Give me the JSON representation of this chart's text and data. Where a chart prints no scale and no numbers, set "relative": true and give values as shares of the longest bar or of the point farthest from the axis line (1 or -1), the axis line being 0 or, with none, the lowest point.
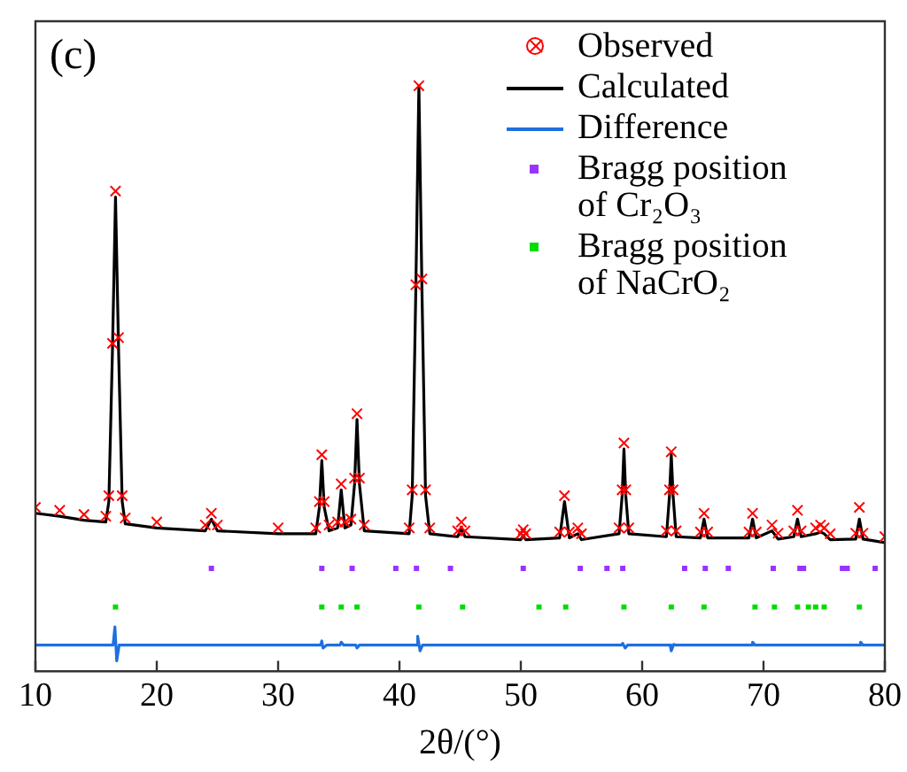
{
  "chart_data": {
    "type": "line",
    "relative": true,
    "xlabel": "2θ/(°)",
    "xlim": [
      10,
      80
    ],
    "xticks": [
      10,
      20,
      30,
      40,
      50,
      60,
      70,
      80
    ],
    "tick_labels": "x",
    "grid": false,
    "legend": "top right",
    "annotations": [
      "(c)"
    ],
    "series": [
      {
        "name": "Observed",
        "type": "scatter",
        "marker": "cross",
        "color": "#ff0000",
        "x": [
          10,
          12,
          14,
          15.8,
          16.05,
          16.35,
          16.6,
          16.85,
          17.15,
          17.4,
          20,
          24.0,
          24.5,
          25.0,
          30,
          33.1,
          33.4,
          33.6,
          33.8,
          34.2,
          34.9,
          35.2,
          35.5,
          36.0,
          36.3,
          36.5,
          36.7,
          37.1,
          40.8,
          41.05,
          41.35,
          41.6,
          41.85,
          42.15,
          42.5,
          44.8,
          45.1,
          45.4,
          50.0,
          50.2,
          50.4,
          53.2,
          53.6,
          54.0,
          54.7,
          55.0,
          58.1,
          58.35,
          58.5,
          58.65,
          58.9,
          62.0,
          62.25,
          62.4,
          62.55,
          62.8,
          64.8,
          65.1,
          65.4,
          68.8,
          69.1,
          69.4,
          70.7,
          71.2,
          72.5,
          72.8,
          73.1,
          74.3,
          74.7,
          75.0,
          75.5,
          77.6,
          77.9,
          78.2,
          80
        ],
        "values": [
          0.28,
          0.275,
          0.268,
          0.265,
          0.3,
          0.56,
          0.82,
          0.57,
          0.3,
          0.262,
          0.255,
          0.25,
          0.27,
          0.25,
          0.245,
          0.245,
          0.29,
          0.37,
          0.29,
          0.25,
          0.255,
          0.32,
          0.255,
          0.26,
          0.33,
          0.44,
          0.33,
          0.25,
          0.245,
          0.31,
          0.66,
          1.0,
          0.67,
          0.31,
          0.245,
          0.24,
          0.255,
          0.24,
          0.235,
          0.242,
          0.235,
          0.238,
          0.3,
          0.238,
          0.245,
          0.235,
          0.245,
          0.31,
          0.39,
          0.31,
          0.245,
          0.24,
          0.31,
          0.375,
          0.31,
          0.24,
          0.238,
          0.27,
          0.238,
          0.238,
          0.27,
          0.238,
          0.25,
          0.236,
          0.24,
          0.275,
          0.24,
          0.245,
          0.25,
          0.245,
          0.235,
          0.236,
          0.28,
          0.236,
          0.23
        ]
      },
      {
        "name": "Calculated",
        "color": "#000000",
        "x": [
          10,
          12,
          14,
          15.8,
          16.05,
          16.35,
          16.6,
          16.85,
          17.15,
          17.4,
          20,
          24.0,
          24.5,
          25.0,
          30,
          33.1,
          33.4,
          33.6,
          33.8,
          34.2,
          34.9,
          35.2,
          35.5,
          36.0,
          36.3,
          36.5,
          36.7,
          37.1,
          40.8,
          41.05,
          41.35,
          41.6,
          41.85,
          42.15,
          42.5,
          44.8,
          45.1,
          45.4,
          50.0,
          50.2,
          50.4,
          53.2,
          53.6,
          54.0,
          54.7,
          55.0,
          58.1,
          58.35,
          58.5,
          58.65,
          58.9,
          62.0,
          62.25,
          62.4,
          62.55,
          62.8,
          64.8,
          65.1,
          65.4,
          68.8,
          69.1,
          69.4,
          70.7,
          71.2,
          72.5,
          72.8,
          73.1,
          74.3,
          74.7,
          75.0,
          75.5,
          77.6,
          77.9,
          78.2,
          80
        ],
        "values": [
          0.27,
          0.265,
          0.258,
          0.255,
          0.29,
          0.55,
          0.81,
          0.55,
          0.29,
          0.252,
          0.245,
          0.24,
          0.26,
          0.24,
          0.235,
          0.235,
          0.28,
          0.36,
          0.28,
          0.24,
          0.245,
          0.31,
          0.245,
          0.25,
          0.32,
          0.43,
          0.32,
          0.24,
          0.235,
          0.3,
          0.655,
          1.0,
          0.655,
          0.3,
          0.235,
          0.23,
          0.245,
          0.23,
          0.225,
          0.232,
          0.225,
          0.228,
          0.29,
          0.228,
          0.235,
          0.225,
          0.235,
          0.3,
          0.38,
          0.3,
          0.235,
          0.23,
          0.3,
          0.37,
          0.3,
          0.23,
          0.228,
          0.26,
          0.228,
          0.228,
          0.26,
          0.228,
          0.24,
          0.226,
          0.23,
          0.26,
          0.23,
          0.235,
          0.238,
          0.235,
          0.225,
          0.226,
          0.26,
          0.226,
          0.22
        ]
      },
      {
        "name": "Difference",
        "color": "#1f6fe0",
        "x": [
          10,
          16.4,
          16.55,
          16.7,
          16.9,
          25,
          33.5,
          33.6,
          33.7,
          34,
          35.1,
          35.2,
          35.4,
          36.4,
          36.5,
          36.7,
          41.4,
          41.5,
          41.7,
          41.9,
          50,
          58.3,
          58.4,
          58.6,
          58.8,
          62.3,
          62.4,
          62.6,
          62.8,
          69.0,
          69.1,
          69.3,
          77.9,
          78.0,
          78.2,
          80
        ],
        "values": [
          0.045,
          0.045,
          0.076,
          0.018,
          0.045,
          0.045,
          0.045,
          0.052,
          0.04,
          0.045,
          0.045,
          0.05,
          0.045,
          0.045,
          0.04,
          0.045,
          0.045,
          0.06,
          0.035,
          0.045,
          0.045,
          0.045,
          0.048,
          0.04,
          0.045,
          0.045,
          0.035,
          0.046,
          0.045,
          0.045,
          0.05,
          0.045,
          0.045,
          0.05,
          0.045,
          0.045
        ]
      },
      {
        "name": "Bragg position of Cr₂O₃",
        "type": "scatter",
        "marker": "square",
        "color": "#9933ff",
        "x": [
          24.5,
          33.6,
          36.1,
          39.7,
          41.4,
          44.2,
          50.2,
          54.9,
          57.1,
          58.4,
          63.5,
          65.2,
          67.1,
          70.8,
          73.0,
          73.3,
          76.5,
          76.9,
          79.2
        ],
        "values": [
          0.176,
          0.176,
          0.176,
          0.176,
          0.176,
          0.176,
          0.176,
          0.176,
          0.176,
          0.176,
          0.176,
          0.176,
          0.176,
          0.176,
          0.176,
          0.176,
          0.176,
          0.176,
          0.176
        ]
      },
      {
        "name": "Bragg position of NaCrO₂",
        "type": "scatter",
        "marker": "square",
        "color": "#00dd00",
        "x": [
          16.6,
          33.6,
          35.2,
          36.5,
          41.6,
          45.2,
          51.5,
          53.7,
          58.5,
          62.4,
          65.1,
          69.3,
          70.9,
          72.8,
          73.7,
          74.3,
          75.0,
          77.9
        ],
        "values": [
          0.11,
          0.11,
          0.11,
          0.11,
          0.11,
          0.11,
          0.11,
          0.11,
          0.11,
          0.11,
          0.11,
          0.11,
          0.11,
          0.11,
          0.11,
          0.11,
          0.11,
          0.11
        ]
      }
    ]
  }
}
